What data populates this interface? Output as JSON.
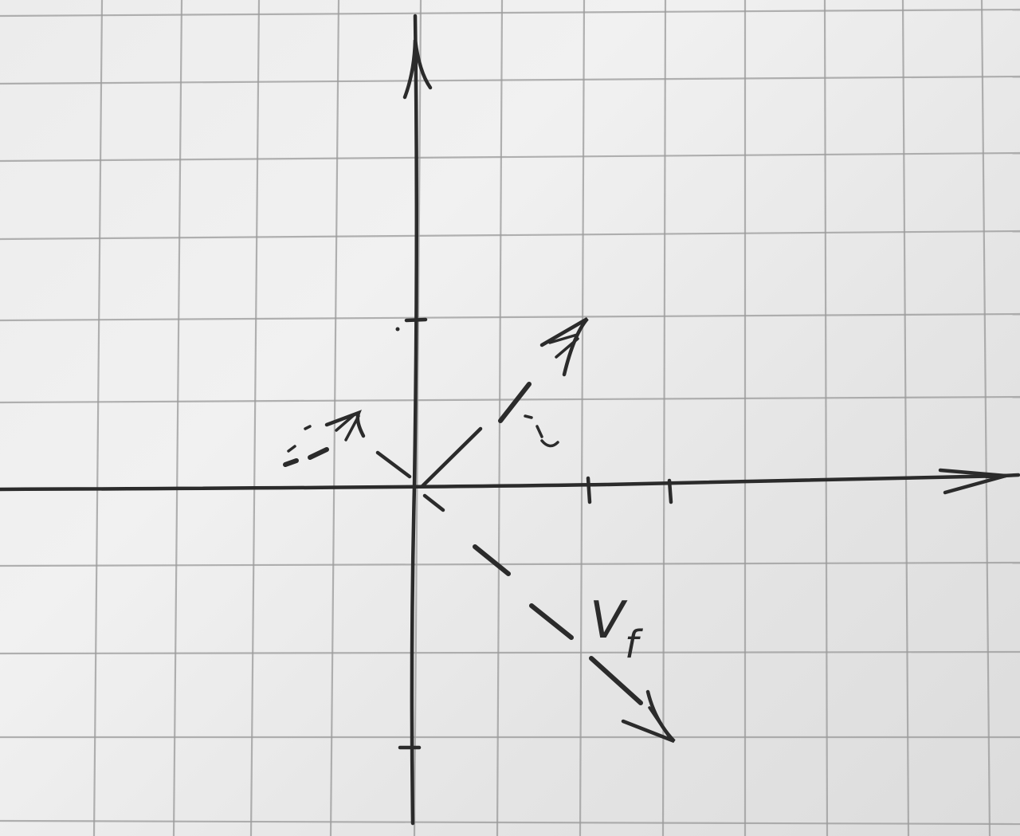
{
  "diagram": {
    "labels": {
      "final_velocity": "V",
      "final_velocity_subscript": "f"
    },
    "vectors": [
      {
        "name": "unlabeled-vector-up-left",
        "style": "dashed"
      },
      {
        "name": "unlabeled-vector-up-right",
        "style": "dashed"
      },
      {
        "name": "final-velocity-vector",
        "style": "dashed"
      }
    ],
    "axes": {
      "x_axis": "arrow-right",
      "y_axis": "arrow-up"
    },
    "colors": {
      "ink": "#2b2b2b",
      "grid": "#9a9a9a",
      "paper": "#ececec"
    }
  }
}
